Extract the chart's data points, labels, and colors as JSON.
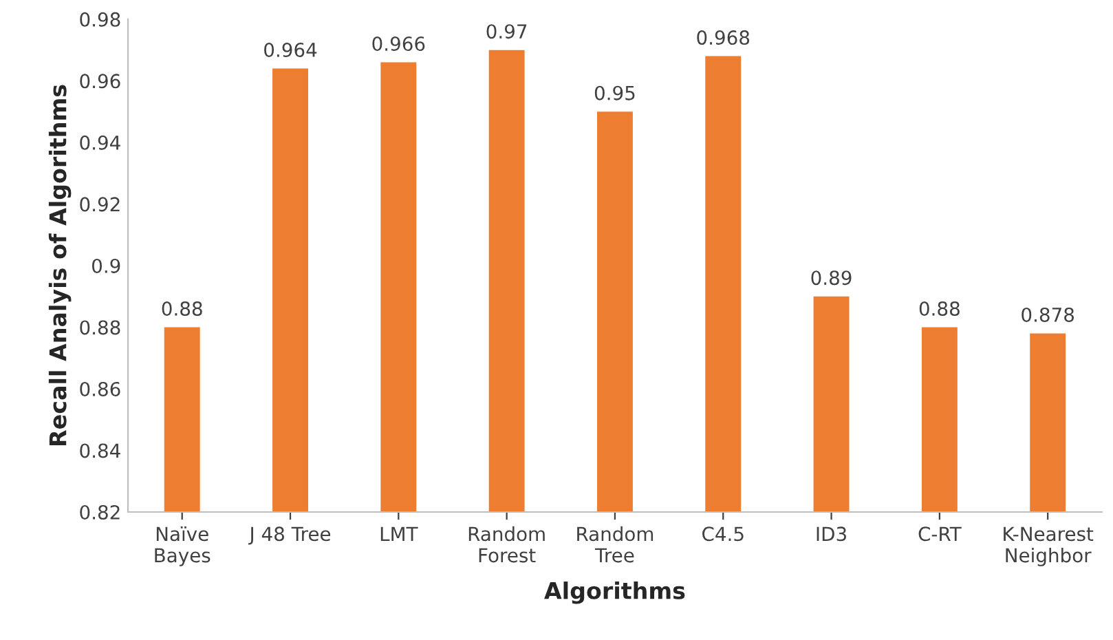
{
  "chart_data": {
    "type": "bar",
    "xlabel": "Algorithms",
    "ylabel": "Recall Analyis of Algorithms",
    "categories": [
      "Naïve\nBayes",
      "J 48 Tree",
      "LMT",
      "Random\nForest",
      "Random\nTree",
      "C4.5",
      "ID3",
      "C-RT",
      "K-Nearest\nNeighbor"
    ],
    "values": [
      0.88,
      0.964,
      0.966,
      0.97,
      0.95,
      0.968,
      0.89,
      0.88,
      0.878
    ],
    "color": "#ed7d31",
    "ylim": [
      0.82,
      0.98
    ],
    "yticks": [
      0.82,
      0.84,
      0.86,
      0.88,
      0.9,
      0.92,
      0.94,
      0.96,
      0.98
    ],
    "data_labels": true,
    "grid": false
  }
}
